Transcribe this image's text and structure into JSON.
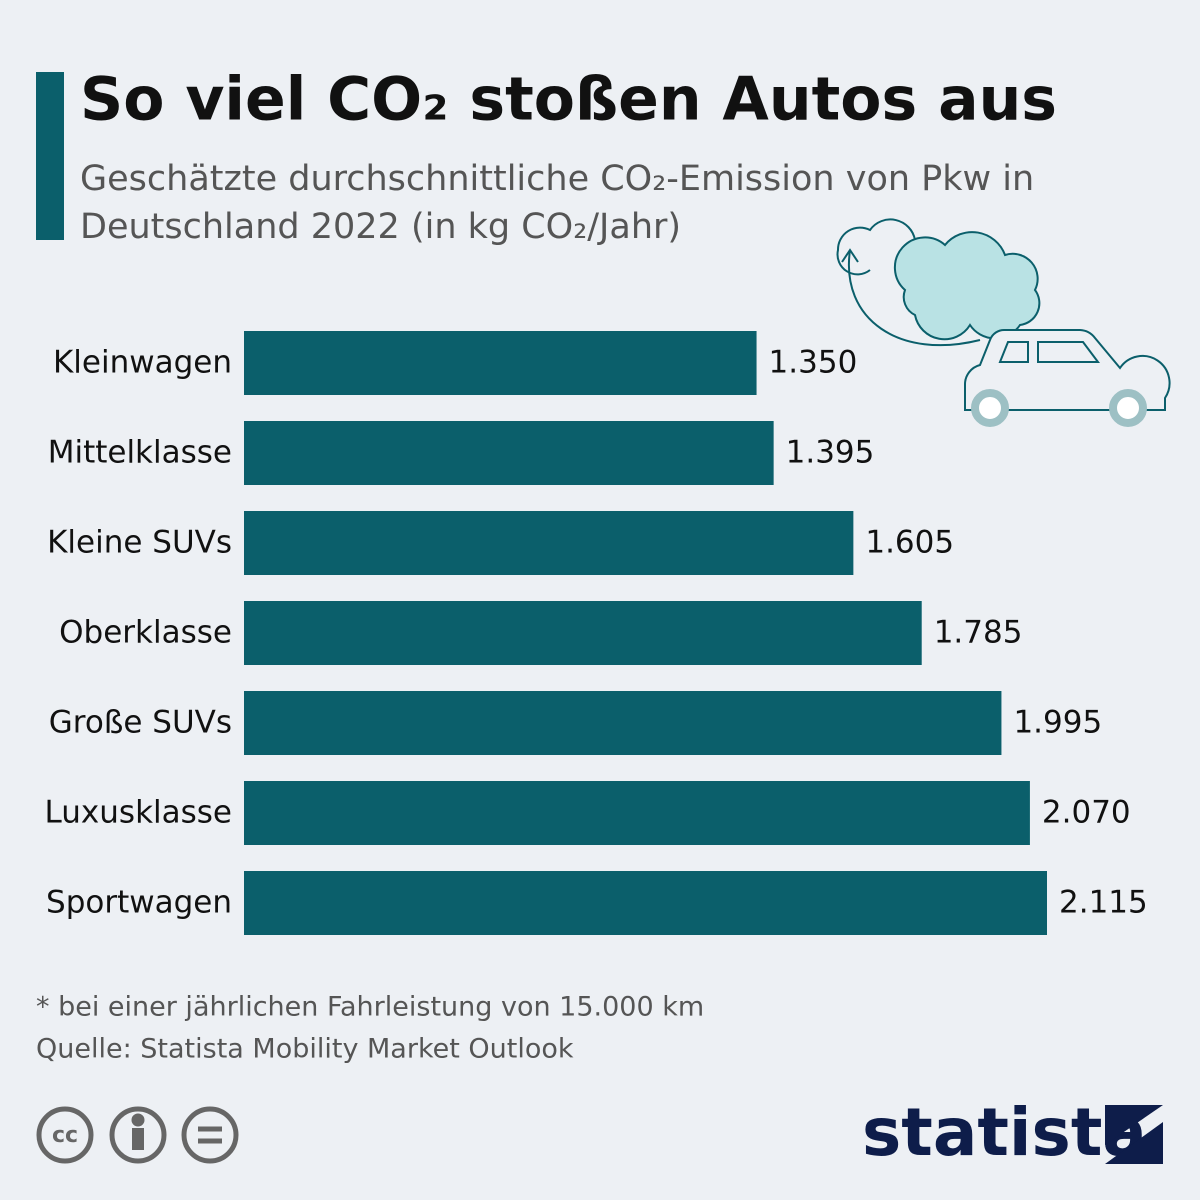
{
  "chart_data": {
    "type": "bar",
    "orientation": "horizontal",
    "title": "So viel CO₂ stoßen Autos aus",
    "subtitle": [
      "Geschätzte durchschnittliche CO₂-Emission von Pkw in",
      "Deutschland 2022 (in kg CO₂/Jahr)"
    ],
    "categories": [
      "Kleinwagen",
      "Mittelklasse",
      "Kleine SUVs",
      "Oberklasse",
      "Große SUVs",
      "Luxusklasse",
      "Sportwagen"
    ],
    "values": [
      1350,
      1395,
      1605,
      1785,
      1995,
      2070,
      2115
    ],
    "value_labels": [
      "1.350",
      "1.395",
      "1.605",
      "1.785",
      "1.995",
      "2.070",
      "2.115"
    ],
    "color": "#0b5f6b",
    "footnote": "* bei einer jährlichen Fahrleistung von 15.000 km",
    "source": "Quelle: Statista Mobility Market Outlook",
    "brand": "statista"
  }
}
